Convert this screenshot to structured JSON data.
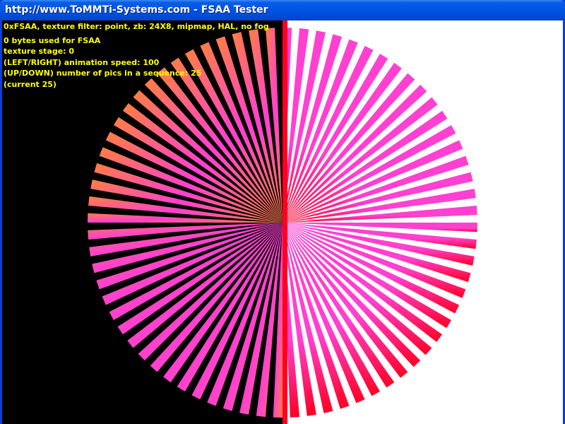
{
  "window": {
    "title": "http://www.ToMMTi-Systems.com - FSAA Tester"
  },
  "overlay": {
    "status_line": "0xFSAA, texture filter: point, zb: 24X8, mipmap, HAL, no fog",
    "lines": [
      "0 bytes used for FSAA",
      "texture stage: 0",
      "(LEFT/RIGHT) animation speed: 100",
      "(UP/DOWN) number of pics in a sequence: 25",
      "(current 25)"
    ]
  },
  "colors": {
    "titlebar": "#0054e3",
    "overlay_text": "#ffff00",
    "left_background": "#000000",
    "right_background": "#ffffff",
    "spoke_pink": "#ff40d0",
    "spoke_orange": "#ff8040",
    "spoke_red": "#ff0020"
  }
}
